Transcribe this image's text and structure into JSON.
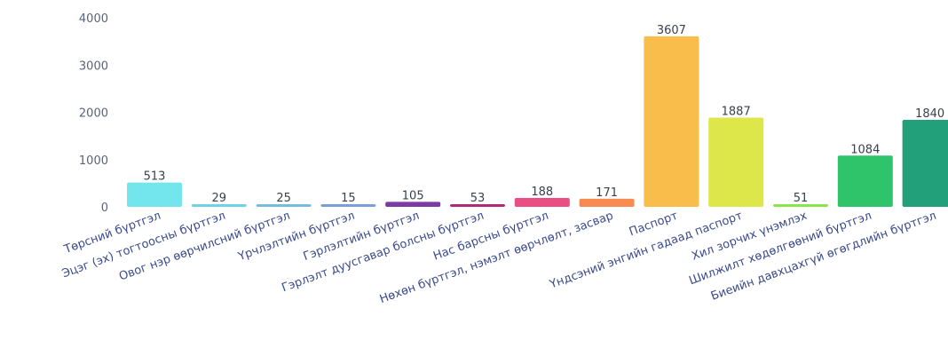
{
  "chart_data": {
    "type": "bar",
    "title": "",
    "xlabel": "",
    "ylabel": "",
    "ylim": [
      0,
      4000
    ],
    "yticks": [
      0,
      1000,
      2000,
      3000,
      4000
    ],
    "ytick_labels": [
      "0",
      "1000",
      "2000",
      "3000",
      "4000"
    ],
    "grid": false,
    "categories": [
      "Төрсний бүртгэл",
      "Эцэг (эх) тогтоосны бүртгэл",
      "Овог нэр өөрчилсний бүртгэл",
      "Үрчлэлтийн бүртгэл",
      "Гэрлэлтийн бүртгэл",
      "Гэрлэлт дуусгавар болсны бүртгэл",
      "Нас барсны бүртгэл",
      "Нөхөн бүртгэл, нэмэлт өөрчлөлт, засвар",
      "Паспорт",
      "Үндсэний энгийн гадаад паспорт",
      "Хил зорчих үнэмлэх",
      "Шилжилт хөдөлгөөний бүртгэл",
      "Биеийн давхцахгүй өгөгдлийн бүртгэл"
    ],
    "values": [
      513,
      29,
      25,
      15,
      105,
      53,
      188,
      171,
      3607,
      1887,
      51,
      1084,
      1840
    ],
    "value_labels": [
      "513",
      "29",
      "25",
      "15",
      "105",
      "53",
      "188",
      "171",
      "3607",
      "1887",
      "51",
      "1084",
      "1840"
    ],
    "colors": [
      "#72e6ec",
      "#6dd3e6",
      "#74bde0",
      "#7a9fd6",
      "#7b3aa4",
      "#b02a78",
      "#ea4f84",
      "#f98b50",
      "#f8bd4a",
      "#dde74a",
      "#8be64a",
      "#2fc46a",
      "#21a07a"
    ]
  }
}
